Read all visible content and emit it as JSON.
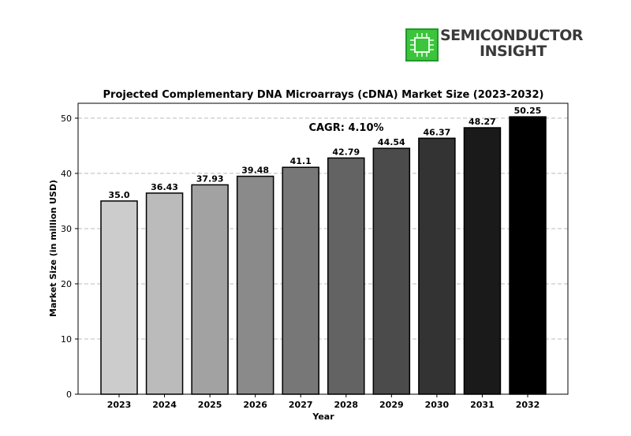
{
  "logo": {
    "line1": "SEMICONDUCTOR",
    "line2": "INSIGHT",
    "chip_color": "#2fb52f",
    "icon": "chip-icon"
  },
  "chart_data": {
    "type": "bar",
    "title": "Projected Complementary DNA Microarrays (cDNA) Market Size (2023-2032)",
    "xlabel": "Year",
    "ylabel": "Market Size (in million USD)",
    "annotation": "CAGR: 4.10%",
    "categories": [
      "2023",
      "2024",
      "2025",
      "2026",
      "2027",
      "2028",
      "2029",
      "2030",
      "2031",
      "2032"
    ],
    "values": [
      35.0,
      36.43,
      37.93,
      39.48,
      41.1,
      42.79,
      44.54,
      46.37,
      48.27,
      50.25
    ],
    "value_labels": [
      "35.0",
      "36.43",
      "37.93",
      "39.48",
      "41.1",
      "42.79",
      "44.54",
      "46.37",
      "48.27",
      "50.25"
    ],
    "colors": [
      "#cccccc",
      "#bbbbbb",
      "#a2a2a2",
      "#8a8a8a",
      "#777777",
      "#636363",
      "#4b4b4b",
      "#333333",
      "#1a1a1a",
      "#000000"
    ],
    "ylim": [
      0,
      52.7
    ],
    "yticks": [
      0,
      10,
      20,
      30,
      40,
      50
    ],
    "grid": "y-dashed"
  }
}
